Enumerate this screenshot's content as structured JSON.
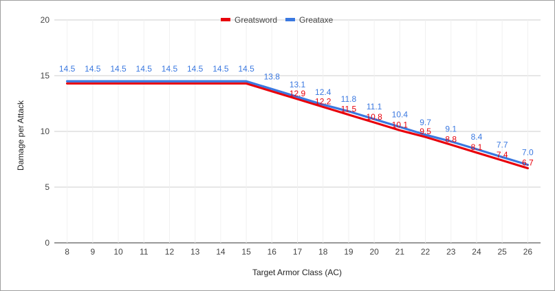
{
  "chart_data": {
    "type": "line",
    "title": "",
    "xlabel": "Target Armor Class (AC)",
    "ylabel": "Damage per Attack",
    "x": [
      8,
      9,
      10,
      11,
      12,
      13,
      14,
      15,
      16,
      17,
      18,
      19,
      20,
      21,
      22,
      23,
      24,
      25,
      26
    ],
    "ylim": [
      0,
      20
    ],
    "yticks": [
      0,
      5,
      10,
      15,
      20
    ],
    "legend_position": "top-center",
    "grid": true,
    "series": [
      {
        "name": "Greatsword",
        "color": "#e8000b",
        "values": [
          14.3,
          14.3,
          14.3,
          14.3,
          14.3,
          14.3,
          14.3,
          14.3,
          13.6,
          12.9,
          12.2,
          11.5,
          10.8,
          10.1,
          9.5,
          8.8,
          8.1,
          7.4,
          6.7
        ],
        "labels": [
          "",
          "",
          "",
          "",
          "",
          "",
          "",
          "",
          "",
          "12.9",
          "12.2",
          "11.5",
          "10.8",
          "10.1",
          "9.5",
          "8.8",
          "8.1",
          "7.4",
          "6.7"
        ]
      },
      {
        "name": "Greataxe",
        "color": "#3a78e0",
        "values": [
          14.5,
          14.5,
          14.5,
          14.5,
          14.5,
          14.5,
          14.5,
          14.5,
          13.8,
          13.1,
          12.4,
          11.8,
          11.1,
          10.4,
          9.7,
          9.1,
          8.4,
          7.7,
          7.0
        ],
        "labels": [
          "14.5",
          "14.5",
          "14.5",
          "14.5",
          "14.5",
          "14.5",
          "14.5",
          "14.5",
          "13.8",
          "13.1",
          "12.4",
          "11.8",
          "11.1",
          "10.4",
          "9.7",
          "9.1",
          "8.4",
          "7.7",
          "7.0"
        ]
      }
    ]
  }
}
